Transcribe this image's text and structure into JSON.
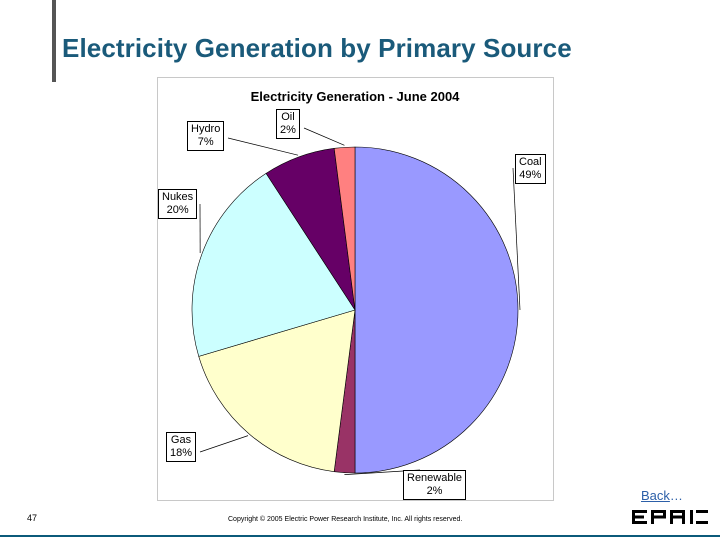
{
  "slide": {
    "title": "Electricity Generation by Primary Source",
    "page_number": "47",
    "copyright": "Copyright © 2005 Electric Power Research Institute, Inc. All rights reserved.",
    "back_link": "Back",
    "back_ellipsis": "…",
    "logo_text": "EPRI",
    "colors": {
      "title": "#1a5a7a",
      "back_link": "#2c5fa8",
      "bottom_line": "#0b5a7a"
    }
  },
  "chart_data": {
    "type": "pie",
    "title": "Electricity Generation - June 2004",
    "slices": [
      {
        "label": "Coal",
        "value": 49,
        "display": "49%",
        "color": "#9999ff"
      },
      {
        "label": "Renewable",
        "value": 2,
        "display": "2%",
        "color": "#993366"
      },
      {
        "label": "Gas",
        "value": 18,
        "display": "18%",
        "color": "#ffffcc"
      },
      {
        "label": "Nukes",
        "value": 20,
        "display": "20%",
        "color": "#ccffff"
      },
      {
        "label": "Hydro",
        "value": 7,
        "display": "7%",
        "color": "#660066"
      },
      {
        "label": "Oil",
        "value": 2,
        "display": "2%",
        "color": "#ff8080"
      }
    ],
    "start_angle": "12 o'clock, clockwise",
    "legend": "none"
  }
}
